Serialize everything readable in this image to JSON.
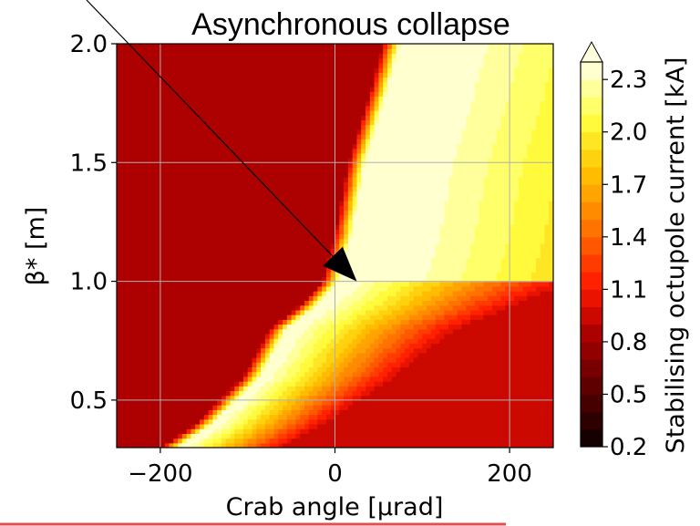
{
  "chart_data": {
    "type": "heatmap",
    "title": "Asynchronous collapse",
    "xlabel": "Crab angle [μrad]",
    "ylabel": "β* [m]",
    "xlim": [
      -250,
      250
    ],
    "ylim": [
      0.3,
      2.0
    ],
    "xticks": [
      "−200",
      "0",
      "200"
    ],
    "yticks": [
      "0.5",
      "1.0",
      "1.5",
      "2.0"
    ],
    "grid": true,
    "colorbar": {
      "label": "Stabilising octupole current [kA]",
      "min": 0.2,
      "max": 2.4,
      "ticks": [
        "0.2",
        "0.5",
        "0.8",
        "1.1",
        "1.4",
        "1.7",
        "2.0",
        "2.3"
      ],
      "colormap": "hot",
      "extend": "max"
    },
    "boundary_low": [
      {
        "y": 0.3,
        "x": -200
      },
      {
        "y": 0.4,
        "x": -160
      },
      {
        "y": 0.6,
        "x": -105
      },
      {
        "y": 0.8,
        "x": -75
      },
      {
        "y": 0.9,
        "x": -40
      },
      {
        "y": 1.0,
        "x": -15
      },
      {
        "y": 1.2,
        "x": 0
      },
      {
        "y": 1.5,
        "x": 15
      },
      {
        "y": 1.8,
        "x": 40
      },
      {
        "y": 2.0,
        "x": 55
      }
    ],
    "annotation": {
      "text": "",
      "type": "arrow",
      "to": {
        "x": 25,
        "y": 1.0
      }
    }
  }
}
